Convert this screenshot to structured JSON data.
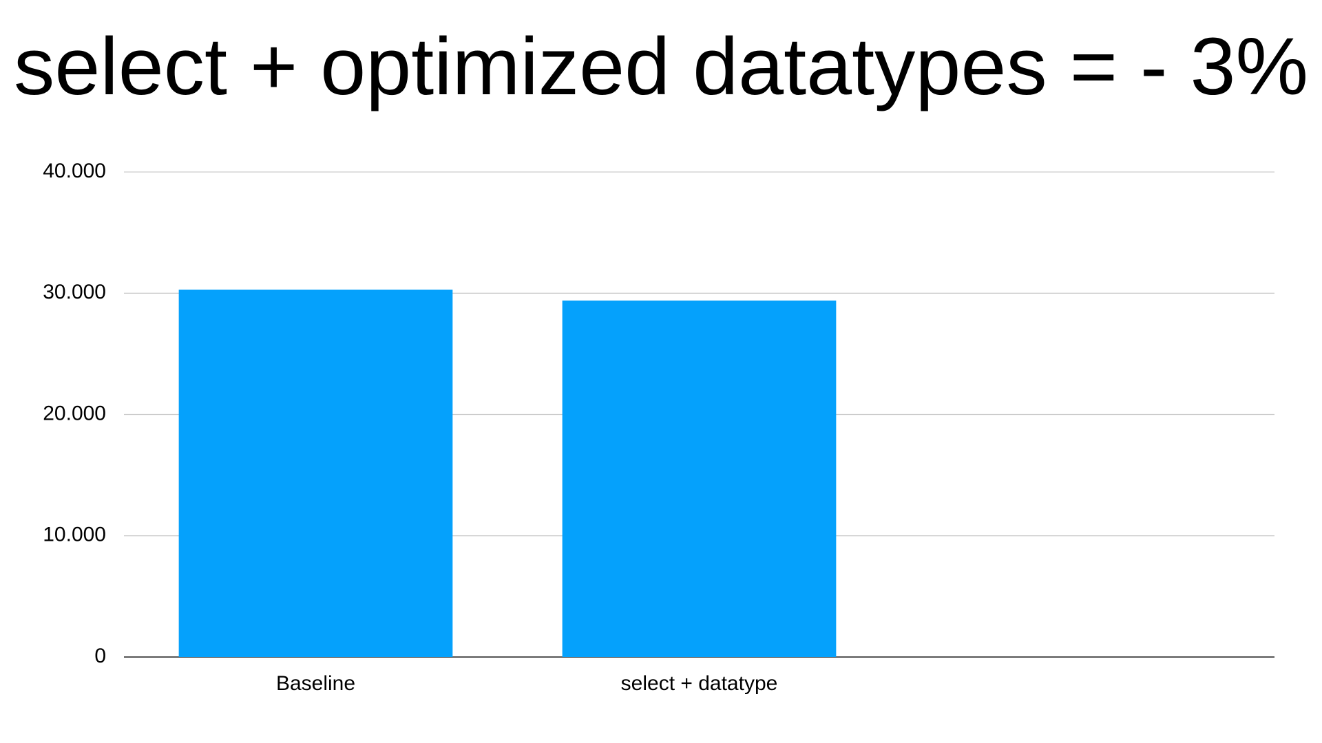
{
  "chart_data": {
    "type": "bar",
    "title": "select + optimized datatypes = - 3%",
    "categories": [
      "Baseline",
      "select + datatype",
      null
    ],
    "values": [
      30300,
      29400,
      null
    ],
    "color": "#05a1fc",
    "ylim": [
      0,
      40000
    ],
    "yticks": [
      0,
      {
        "value": 10000,
        "label": "10.000"
      },
      {
        "value": 20000,
        "label": "20.000"
      },
      {
        "value": 30000,
        "label": "30.000"
      },
      {
        "value": 40000,
        "label": "40.000"
      }
    ],
    "grid": true
  }
}
